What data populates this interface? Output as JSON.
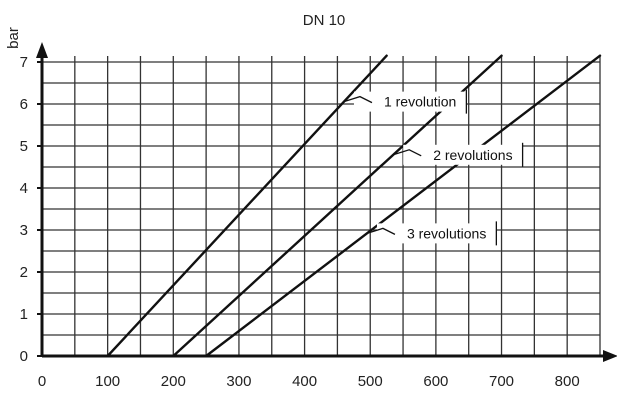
{
  "chart_data": {
    "type": "line",
    "title": "DN 10",
    "xlabel": "",
    "ylabel": "bar",
    "xlim": [
      0,
      850
    ],
    "ylim": [
      0,
      7
    ],
    "x_ticks": [
      0,
      100,
      200,
      300,
      400,
      500,
      600,
      700,
      800
    ],
    "y_ticks": [
      0,
      1,
      2,
      3,
      4,
      5,
      6,
      7
    ],
    "grid": true,
    "axis_arrows": true,
    "series": [
      {
        "name": "1 revolution",
        "x": [
          100,
          525
        ],
        "y": [
          0,
          7.15
        ]
      },
      {
        "name": "2 revolutions",
        "x": [
          200,
          700
        ],
        "y": [
          0,
          7.15
        ]
      },
      {
        "name": "3 revolutions",
        "x": [
          250,
          850
        ],
        "y": [
          0,
          7.15
        ]
      }
    ],
    "annotations": [
      {
        "text": "1 revolution",
        "series": 0,
        "at_x": 460
      },
      {
        "text": "2 revolutions",
        "series": 1,
        "at_x": 535
      },
      {
        "text": "3 revolutions",
        "series": 2,
        "at_x": 495
      }
    ]
  }
}
